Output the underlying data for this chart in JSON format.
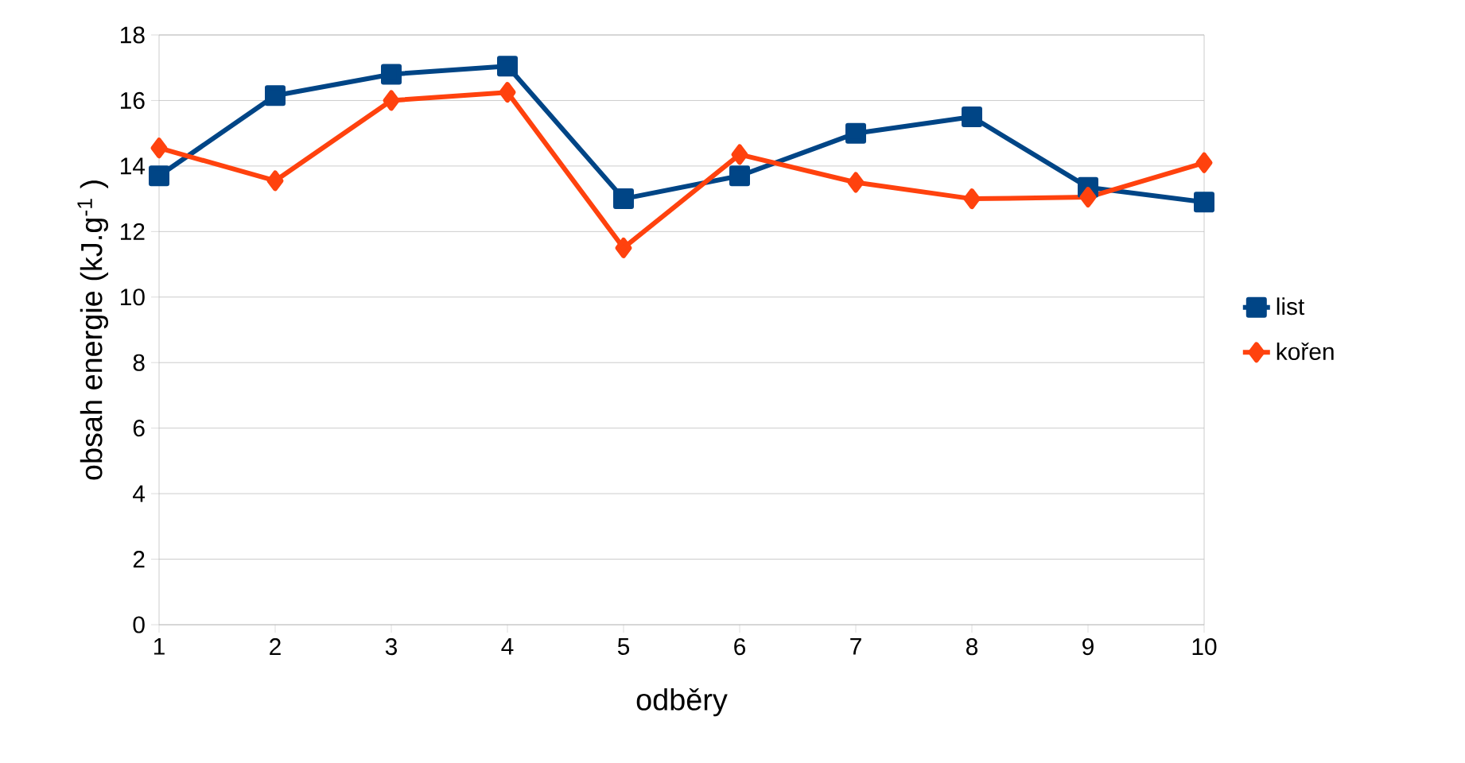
{
  "chart_data": {
    "type": "line",
    "xlabel": "odběry",
    "ylabel": "obsah energie  (kJ.g$^{-1}$ )",
    "categories": [
      "1",
      "2",
      "3",
      "4",
      "5",
      "6",
      "7",
      "8",
      "9",
      "10"
    ],
    "series": [
      {
        "name": "list",
        "color": "#004586",
        "marker": "square",
        "values": [
          13.7,
          16.15,
          16.8,
          17.05,
          13.0,
          13.7,
          15.0,
          15.5,
          13.35,
          12.9
        ]
      },
      {
        "name": "kořen",
        "color": "#ff420e",
        "marker": "diamond",
        "values": [
          14.55,
          13.55,
          16.0,
          16.25,
          11.5,
          14.35,
          13.5,
          13.0,
          13.05,
          14.1
        ]
      }
    ],
    "ylim": [
      0,
      18
    ],
    "yticks": [
      0,
      2,
      4,
      6,
      8,
      10,
      12,
      14,
      16,
      18
    ],
    "grid": "y",
    "legend": "right",
    "line_style": "solid"
  }
}
